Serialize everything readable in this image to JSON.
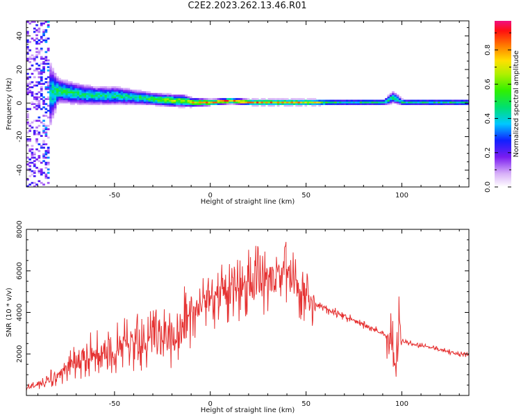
{
  "title": "C2E2.2023.262.13.46.R01",
  "colors": {
    "snr_line": "#e53030",
    "axis": "#000000",
    "background": "#ffffff"
  },
  "chart_data": [
    {
      "type": "heatmap",
      "xlabel": "Height of straight line (km)",
      "ylabel": "Frequency (Hz)",
      "xlim": [
        -96,
        135
      ],
      "ylim": [
        -50,
        49
      ],
      "xticks": [
        -50,
        0,
        50,
        100
      ],
      "yticks": [
        -40,
        -20,
        0,
        20,
        40
      ],
      "grid": false,
      "description_points": {
        "x": [
          -92,
          -80,
          -70,
          -60,
          -50,
          -40,
          -30,
          -20,
          -15,
          -10,
          0,
          10,
          20,
          30,
          40,
          50,
          60,
          70,
          80,
          90,
          95,
          100,
          110,
          120,
          135
        ],
        "center_freq_hz": [
          0,
          7,
          5,
          4,
          4,
          3,
          2,
          1,
          1,
          0,
          0,
          1,
          0,
          0,
          0,
          0,
          0,
          0,
          0,
          0,
          3,
          0,
          0,
          0,
          0
        ],
        "band_halfwidth_hz": [
          45,
          8,
          7,
          6,
          6,
          5,
          4,
          4,
          4,
          3,
          2,
          2,
          2,
          2,
          2,
          2,
          2,
          2,
          2,
          2,
          4,
          2,
          2,
          2,
          2
        ],
        "peak_amplitude": [
          0.3,
          0.55,
          0.5,
          0.5,
          0.5,
          0.5,
          0.6,
          0.7,
          0.7,
          0.8,
          0.9,
          0.9,
          0.85,
          0.85,
          0.85,
          0.85,
          0.6,
          0.5,
          0.5,
          0.5,
          0.5,
          0.5,
          0.5,
          0.5,
          0.5
        ]
      },
      "colorbar": {
        "label": "Normalized spectral amplitude",
        "ticks": [
          0.0,
          0.2,
          0.4,
          0.6,
          0.8
        ],
        "range": [
          0,
          0.97
        ]
      }
    },
    {
      "type": "line",
      "xlabel": "Height of straight line (km)",
      "ylabel": "SNR (10 * v/v)",
      "xlim": [
        -96,
        135
      ],
      "ylim": [
        0,
        8000
      ],
      "xticks": [
        -50,
        0,
        50,
        100
      ],
      "yticks": [
        2000,
        4000,
        6000,
        8000
      ],
      "grid": false,
      "series": [
        {
          "x": [
            -96,
            -90,
            -85,
            -80,
            -75,
            -70,
            -65,
            -60,
            -55,
            -50,
            -45,
            -40,
            -35,
            -30,
            -25,
            -20,
            -15,
            -12,
            -10,
            -5,
            0,
            5,
            10,
            15,
            20,
            25,
            30,
            35,
            38,
            40,
            45,
            50,
            55,
            60,
            65,
            70,
            75,
            80,
            85,
            90,
            95,
            97,
            98,
            100,
            105,
            110,
            115,
            120,
            125,
            130,
            135
          ],
          "values": [
            300,
            500,
            700,
            1000,
            1300,
            1600,
            1900,
            2100,
            2200,
            2300,
            2400,
            2500,
            2600,
            2700,
            2800,
            2900,
            3200,
            3700,
            3900,
            4300,
            4600,
            4800,
            5000,
            5200,
            5400,
            5500,
            5600,
            5700,
            6000,
            5800,
            5300,
            4700,
            4400,
            4200,
            4000,
            3800,
            3600,
            3400,
            3200,
            3000,
            2600,
            1000,
            3800,
            2600,
            2500,
            2400,
            2300,
            2200,
            2100,
            2000,
            1950
          ]
        }
      ]
    }
  ]
}
